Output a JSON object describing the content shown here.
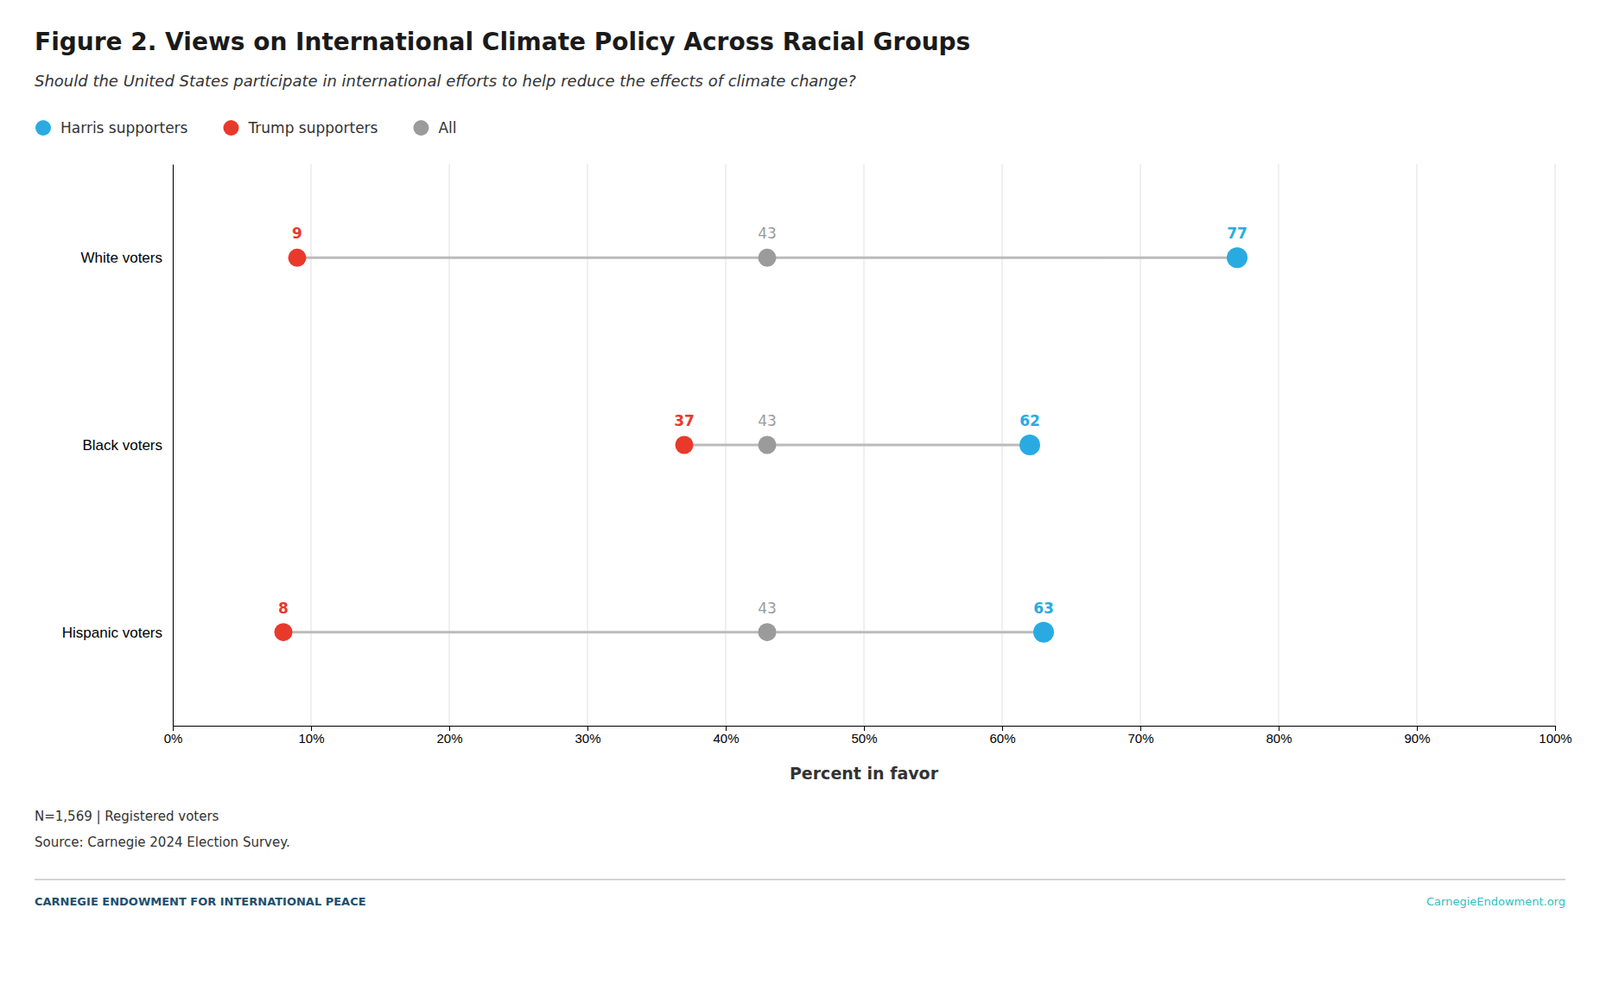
{
  "chart_data": {
    "type": "dumbbell",
    "title": "Figure 2. Views on International Climate Policy Across Racial Groups",
    "subtitle": "Should the United States participate in international efforts to help reduce the effects of climate change?",
    "categories": [
      "White voters",
      "Black voters",
      "Hispanic voters"
    ],
    "series": [
      {
        "name": "Harris supporters",
        "color": "#29ABE2",
        "values": [
          77,
          62,
          63
        ]
      },
      {
        "name": "Trump supporters",
        "color": "#E8392B",
        "values": [
          9,
          37,
          8
        ]
      },
      {
        "name": "All",
        "color": "#9B9B9B",
        "values": [
          43,
          43,
          43
        ]
      }
    ],
    "xlabel": "Percent in favor",
    "xlim": [
      0,
      100
    ],
    "xticks": [
      {
        "value": 0,
        "label": "0%"
      },
      {
        "value": 10,
        "label": "10%"
      },
      {
        "value": 20,
        "label": "20%"
      },
      {
        "value": 30,
        "label": "30%"
      },
      {
        "value": 40,
        "label": "40%"
      },
      {
        "value": 50,
        "label": "50%"
      },
      {
        "value": 60,
        "label": "60%"
      },
      {
        "value": 70,
        "label": "70%"
      },
      {
        "value": 80,
        "label": "80%"
      },
      {
        "value": 90,
        "label": "90%"
      },
      {
        "value": 100,
        "label": "100%"
      }
    ],
    "grid": true,
    "legend": "top",
    "data_labels": true,
    "notes": [
      "N=1,569 | Registered voters",
      "Source: Carnegie 2024 Election Survey."
    ],
    "footer": [
      "CARNEGIE ENDOWMENT FOR INTERNATIONAL PEACE",
      "CarnegieEndowment.org"
    ]
  }
}
